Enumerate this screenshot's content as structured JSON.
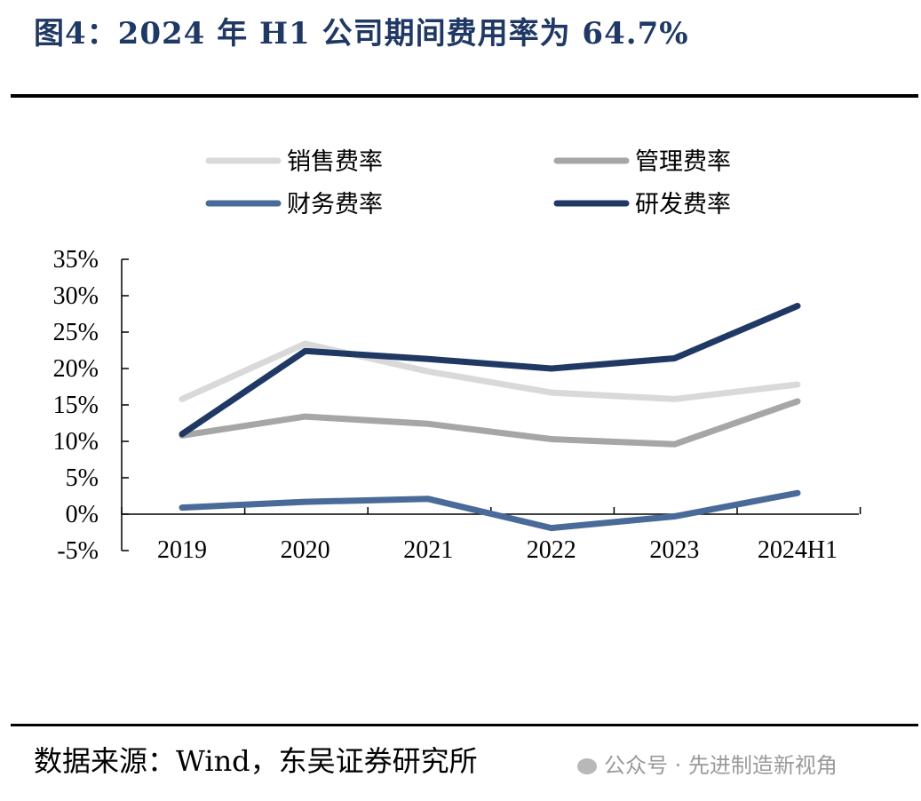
{
  "header": {
    "title": "图4：2024 年 H1 公司期间费用率为 64.7%"
  },
  "footer": {
    "source": "数据来源：Wind，东吴证券研究所",
    "watermark": "公众号 · 先进制造新视角"
  },
  "chart_data": {
    "type": "line",
    "title": "",
    "xlabel": "",
    "ylabel": "",
    "x": [
      "2019",
      "2020",
      "2021",
      "2022",
      "2023",
      "2024H1"
    ],
    "ylim": [
      -5,
      35
    ],
    "yticks": [
      -5,
      0,
      5,
      10,
      15,
      20,
      25,
      30,
      35
    ],
    "ytick_labels": [
      "-5%",
      "0%",
      "5%",
      "10%",
      "15%",
      "20%",
      "25%",
      "30%",
      "35%"
    ],
    "grid": false,
    "legend_position": "top",
    "series": [
      {
        "name": "销售费率",
        "color": "#d9d9d9",
        "values": [
          15.8,
          23.4,
          19.6,
          16.7,
          15.8,
          17.8
        ]
      },
      {
        "name": "管理费率",
        "color": "#a6a6a6",
        "values": [
          10.8,
          13.4,
          12.4,
          10.3,
          9.6,
          15.5
        ]
      },
      {
        "name": "财务费率",
        "color": "#4a6a99",
        "values": [
          0.9,
          1.7,
          2.1,
          -1.9,
          -0.3,
          2.9
        ]
      },
      {
        "name": "研发费率",
        "color": "#1f3864",
        "values": [
          11.0,
          22.4,
          21.3,
          20.0,
          21.4,
          28.6
        ]
      }
    ]
  }
}
